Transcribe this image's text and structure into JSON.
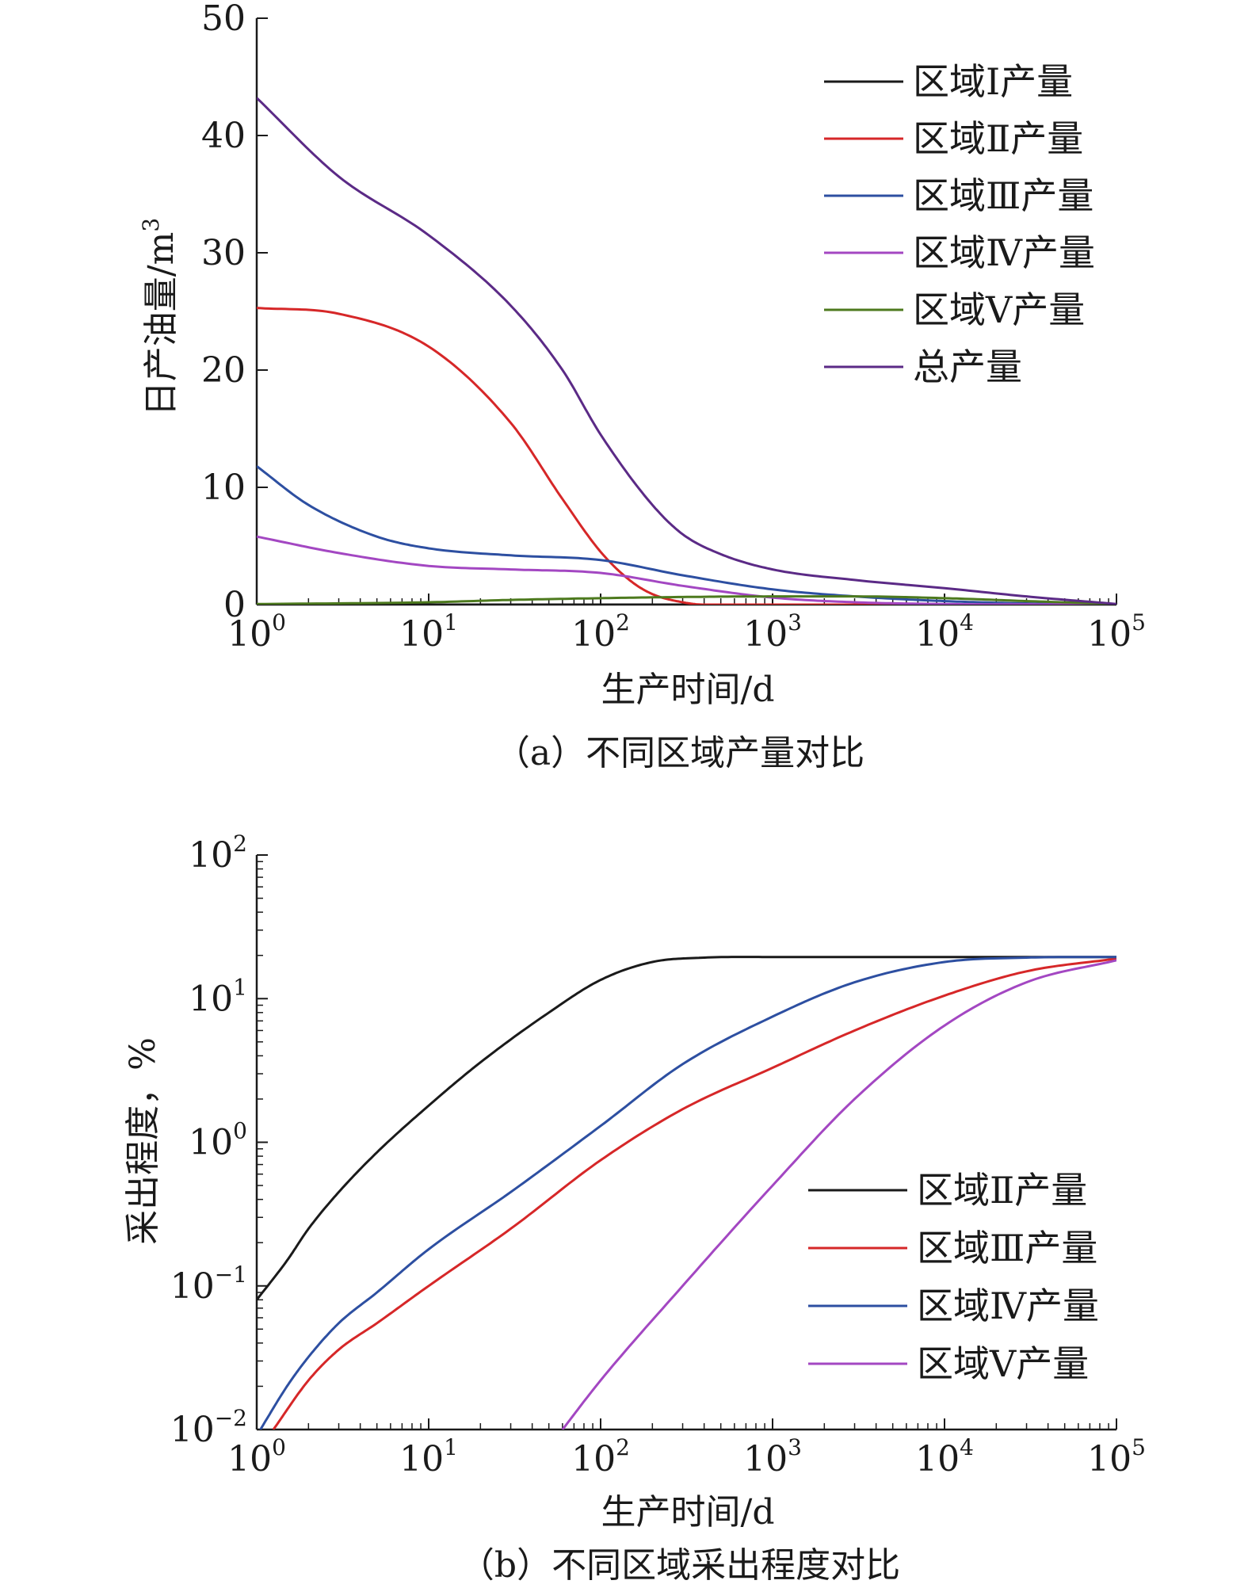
{
  "chart_data": [
    {
      "type": "line",
      "caption": "（a）不同区域产量对比",
      "xlabel": "生产时间/d",
      "ylabel_main": "日产油量/m",
      "ylabel_sup": "3",
      "x_scale": "log",
      "xlim": [
        1,
        100000
      ],
      "ylim": [
        0,
        50
      ],
      "x_ticks": [
        {
          "base": "10",
          "exp": "0"
        },
        {
          "base": "10",
          "exp": "1"
        },
        {
          "base": "10",
          "exp": "2"
        },
        {
          "base": "10",
          "exp": "3"
        },
        {
          "base": "10",
          "exp": "4"
        },
        {
          "base": "10",
          "exp": "5"
        }
      ],
      "y_ticks": [
        "0",
        "10",
        "20",
        "30",
        "40",
        "50"
      ],
      "legend_position": "top-right",
      "series": [
        {
          "name": "区域Ⅰ产量",
          "color": "#1a1a1a",
          "points": [
            [
              1,
              0
            ],
            [
              100000,
              0
            ]
          ]
        },
        {
          "name": "区域Ⅱ产量",
          "color": "#d62728",
          "points": [
            [
              1,
              25.3
            ],
            [
              3,
              24.8
            ],
            [
              10,
              22.0
            ],
            [
              30,
              15.5
            ],
            [
              60,
              9.0
            ],
            [
              100,
              4.5
            ],
            [
              150,
              2.0
            ],
            [
              200,
              0.9
            ],
            [
              300,
              0.2
            ],
            [
              400,
              0.0
            ],
            [
              100000,
              0.0
            ]
          ]
        },
        {
          "name": "区域Ⅲ产量",
          "color": "#2d4fa1",
          "points": [
            [
              1,
              11.8
            ],
            [
              2,
              8.5
            ],
            [
              5,
              5.8
            ],
            [
              10,
              4.8
            ],
            [
              30,
              4.2
            ],
            [
              100,
              3.8
            ],
            [
              300,
              2.5
            ],
            [
              1000,
              1.3
            ],
            [
              3000,
              0.7
            ],
            [
              10000,
              0.3
            ],
            [
              30000,
              0.1
            ],
            [
              100000,
              0.0
            ]
          ]
        },
        {
          "name": "区域Ⅳ产量",
          "color": "#a347c2",
          "points": [
            [
              1,
              5.8
            ],
            [
              3,
              4.4
            ],
            [
              10,
              3.3
            ],
            [
              30,
              3.0
            ],
            [
              100,
              2.7
            ],
            [
              300,
              1.6
            ],
            [
              1000,
              0.6
            ],
            [
              3000,
              0.2
            ],
            [
              10000,
              0.05
            ],
            [
              100000,
              0.0
            ]
          ]
        },
        {
          "name": "区域Ⅴ产量",
          "color": "#4d7a1e",
          "points": [
            [
              1,
              0.05
            ],
            [
              10,
              0.2
            ],
            [
              30,
              0.4
            ],
            [
              100,
              0.55
            ],
            [
              300,
              0.65
            ],
            [
              1000,
              0.7
            ],
            [
              3000,
              0.7
            ],
            [
              10000,
              0.55
            ],
            [
              30000,
              0.3
            ],
            [
              100000,
              0.05
            ]
          ]
        },
        {
          "name": "总产量",
          "color": "#5b2a86",
          "points": [
            [
              1,
              43.2
            ],
            [
              3,
              36.5
            ],
            [
              10,
              31.5
            ],
            [
              30,
              25.5
            ],
            [
              60,
              20.0
            ],
            [
              100,
              14.5
            ],
            [
              200,
              8.5
            ],
            [
              300,
              6.0
            ],
            [
              500,
              4.3
            ],
            [
              1000,
              3.0
            ],
            [
              3000,
              2.1
            ],
            [
              10000,
              1.4
            ],
            [
              30000,
              0.7
            ],
            [
              100000,
              0.05
            ]
          ]
        }
      ]
    },
    {
      "type": "line",
      "caption": "（b）不同区域采出程度对比",
      "xlabel": "生产时间/d",
      "ylabel": "采出程度，%",
      "x_scale": "log",
      "y_scale": "log",
      "xlim": [
        1,
        100000
      ],
      "ylim": [
        0.01,
        100
      ],
      "x_ticks": [
        {
          "base": "10",
          "exp": "0"
        },
        {
          "base": "10",
          "exp": "1"
        },
        {
          "base": "10",
          "exp": "2"
        },
        {
          "base": "10",
          "exp": "3"
        },
        {
          "base": "10",
          "exp": "4"
        },
        {
          "base": "10",
          "exp": "5"
        }
      ],
      "y_ticks": [
        {
          "base": "10",
          "exp": "−2"
        },
        {
          "base": "10",
          "exp": "−1"
        },
        {
          "base": "10",
          "exp": "0"
        },
        {
          "base": "10",
          "exp": "1"
        },
        {
          "base": "10",
          "exp": "2"
        }
      ],
      "legend_position": "lower-right",
      "series": [
        {
          "name": "区域Ⅱ产量",
          "color": "#1a1a1a",
          "points": [
            [
              1,
              0.08
            ],
            [
              1.5,
              0.15
            ],
            [
              2,
              0.25
            ],
            [
              3,
              0.45
            ],
            [
              5,
              0.85
            ],
            [
              10,
              1.8
            ],
            [
              20,
              3.6
            ],
            [
              50,
              8.0
            ],
            [
              100,
              13.5
            ],
            [
              200,
              18.0
            ],
            [
              400,
              19.3
            ],
            [
              1000,
              19.5
            ],
            [
              100000,
              19.5
            ]
          ]
        },
        {
          "name": "区域Ⅲ产量",
          "color": "#d62728",
          "points": [
            [
              1.25,
              0.01
            ],
            [
              2,
              0.022
            ],
            [
              3,
              0.036
            ],
            [
              5,
              0.055
            ],
            [
              10,
              0.1
            ],
            [
              30,
              0.25
            ],
            [
              100,
              0.75
            ],
            [
              300,
              1.7
            ],
            [
              1000,
              3.3
            ],
            [
              3000,
              6.0
            ],
            [
              10000,
              10.5
            ],
            [
              30000,
              15.5
            ],
            [
              100000,
              19.0
            ]
          ]
        },
        {
          "name": "区域Ⅳ产量",
          "color": "#2d4fa1",
          "points": [
            [
              1.05,
              0.01
            ],
            [
              1.5,
              0.02
            ],
            [
              2,
              0.032
            ],
            [
              3,
              0.055
            ],
            [
              5,
              0.09
            ],
            [
              10,
              0.18
            ],
            [
              30,
              0.45
            ],
            [
              100,
              1.3
            ],
            [
              300,
              3.5
            ],
            [
              1000,
              7.5
            ],
            [
              3000,
              13.0
            ],
            [
              10000,
              18.0
            ],
            [
              30000,
              19.3
            ],
            [
              100000,
              19.5
            ]
          ]
        },
        {
          "name": "区域Ⅴ产量",
          "color": "#a347c2",
          "points": [
            [
              60,
              0.01
            ],
            [
              100,
              0.022
            ],
            [
              300,
              0.1
            ],
            [
              1000,
              0.5
            ],
            [
              3000,
              2.0
            ],
            [
              10000,
              6.5
            ],
            [
              30000,
              13.0
            ],
            [
              100000,
              18.5
            ]
          ]
        }
      ]
    }
  ]
}
